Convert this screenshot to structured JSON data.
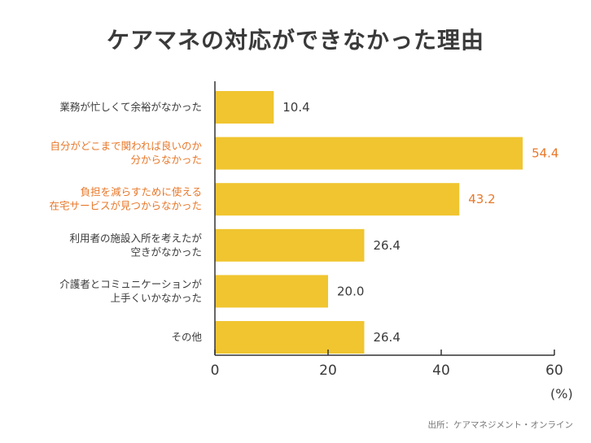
{
  "chart_data": {
    "type": "bar",
    "orientation": "horizontal",
    "title": "ケアマネの対応ができなかった理由",
    "categories": [
      [
        "業務が忙しくて余裕がなかった"
      ],
      [
        "自分がどこまで関われば良いのか",
        "分からなかった"
      ],
      [
        "負担を減らすために使える",
        "在宅サービスが見つからなかった"
      ],
      [
        "利用者の施設入所を考えたが",
        "空きがなかった"
      ],
      [
        "介護者とコミュニケーションが",
        "上手くいかなかった"
      ],
      [
        "その他"
      ]
    ],
    "values": [
      10.4,
      54.4,
      43.2,
      26.4,
      20.0,
      26.4
    ],
    "value_labels": [
      "10.4",
      "54.4",
      "43.2",
      "26.4",
      "20.0",
      "26.4"
    ],
    "highlighted": [
      false,
      true,
      true,
      false,
      false,
      false
    ],
    "xlim": [
      0,
      60
    ],
    "x_ticks": [
      0,
      20,
      40,
      60
    ],
    "x_tick_labels": [
      "0",
      "20",
      "40",
      "60"
    ],
    "unit_label": "(%)",
    "grid": false,
    "colors": {
      "bar": "#f0c530",
      "text": "#3a3a3a",
      "highlight_text": "#e8782a",
      "axis": "#333333"
    }
  },
  "source": "出所：ケアマネジメント・オンライン"
}
